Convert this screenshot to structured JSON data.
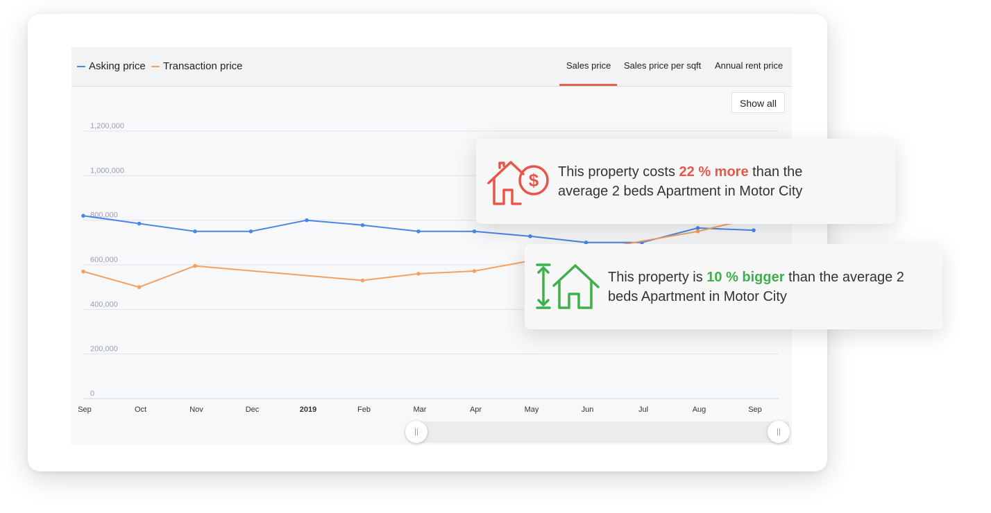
{
  "legend": {
    "asking_label": "Asking price",
    "transaction_label": "Transaction price"
  },
  "tabs": [
    {
      "label": "Sales price",
      "active": true
    },
    {
      "label": "Sales price per sqft",
      "active": false
    },
    {
      "label": "Annual rent price",
      "active": false
    }
  ],
  "show_all_label": "Show all",
  "colors": {
    "asking": "#4a86e8",
    "transaction": "#f6a05c",
    "accent_red": "#e8564a",
    "accent_green": "#3eb04a"
  },
  "chart_data": {
    "type": "line",
    "categories": [
      "Sep",
      "Oct",
      "Nov",
      "Dec",
      "2019",
      "Feb",
      "Mar",
      "Apr",
      "May",
      "Jun",
      "Jul",
      "Aug",
      "Sep"
    ],
    "bold_categories": [
      "2019"
    ],
    "y_ticks": [
      "0",
      "200,000",
      "400,000",
      "600,000",
      "800,000",
      "1,000,000",
      "1,200,000"
    ],
    "ylim": [
      0,
      1200000
    ],
    "grid": true,
    "legend_position": "top-left",
    "series": [
      {
        "name": "Asking price",
        "color_key": "asking",
        "values": [
          820000,
          785000,
          750000,
          750000,
          800000,
          778000,
          750000,
          750000,
          728000,
          700000,
          700000,
          765000,
          755000
        ]
      },
      {
        "name": "Transaction price",
        "color_key": "transaction",
        "values": [
          570000,
          500000,
          595000,
          null,
          null,
          530000,
          560000,
          572000,
          618000,
          null,
          null,
          750000,
          810000
        ]
      }
    ]
  },
  "callouts": {
    "cost": {
      "icon": "house-dollar-icon",
      "prefix": "This property costs ",
      "highlight": "22 % more",
      "suffix": " than the average 2 beds Apartment in Motor City"
    },
    "size": {
      "icon": "house-size-icon",
      "prefix": "This property is ",
      "highlight": "10 % bigger",
      "suffix": " than the average 2 beds Apartment in Motor City"
    }
  },
  "slider": {
    "handle_left_glyph": "||",
    "handle_right_glyph": "||"
  }
}
